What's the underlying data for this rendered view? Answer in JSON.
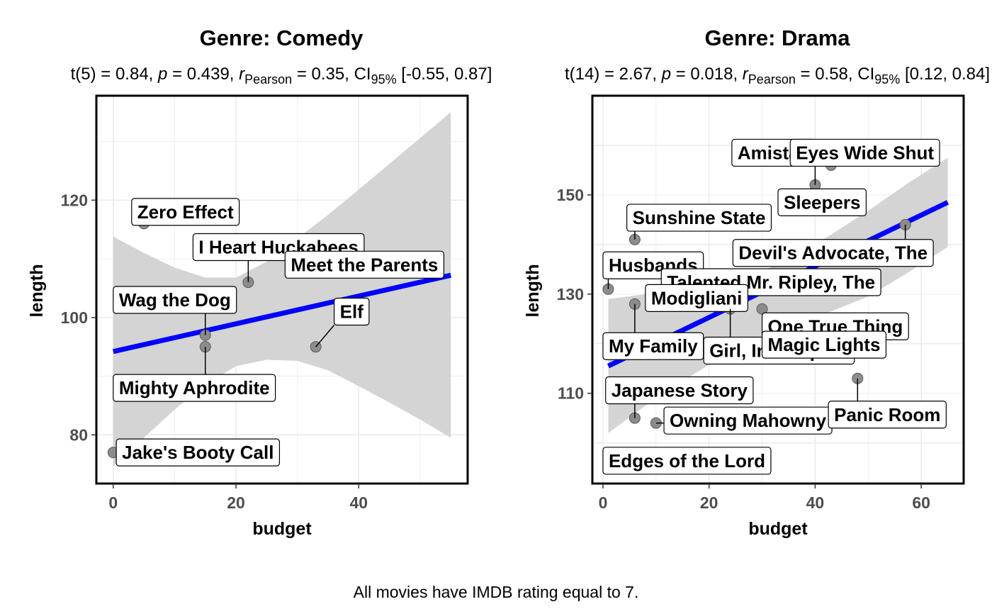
{
  "caption": "All movies have IMDB rating equal to 7.",
  "chart_data": [
    {
      "type": "scatter",
      "title": "Genre: Comedy",
      "subtitle": {
        "pre": "t(5) = 0.84, ",
        "p_sym": "p",
        "p_val": " = 0.439, ",
        "r_sym": "r",
        "r_sub": "Pearson",
        "r_val": " = 0.35, CI",
        "ci_sub": "95%",
        "ci_val": " [-0.55, 0.87]"
      },
      "xlabel": "budget",
      "ylabel": "length",
      "xlim": [
        -2.75,
        57.75
      ],
      "ylim": [
        71.7,
        137.8
      ],
      "xticks": [
        0,
        20,
        40
      ],
      "yticks": [
        80,
        100,
        120
      ],
      "grid": true,
      "points": [
        {
          "x": 5,
          "y": 116,
          "label": "Zero Effect",
          "lx": 3,
          "ly": 118
        },
        {
          "x": 22,
          "y": 106,
          "label": "I Heart Huckabees",
          "lx": 13,
          "ly": 112
        },
        {
          "x": 30,
          "y": 108,
          "label": "Meet the Parents",
          "lx": 28,
          "ly": 109
        },
        {
          "x": 15,
          "y": 97,
          "label": "Wag the Dog",
          "lx": 0,
          "ly": 103
        },
        {
          "x": 33,
          "y": 95,
          "label": "Elf",
          "lx": 36,
          "ly": 101
        },
        {
          "x": 15,
          "y": 95,
          "label": "Mighty Aphrodite",
          "lx": 0,
          "ly": 88
        },
        {
          "x": 0,
          "y": 77,
          "label": "Jake's Booty Call",
          "lx": 0.5,
          "ly": 77
        }
      ],
      "fit": {
        "x0": 0,
        "y0": 94.2,
        "x1": 55,
        "y1": 107.2
      },
      "band": {
        "x": [
          0,
          5,
          10,
          15,
          20,
          25,
          30,
          35,
          40,
          45,
          50,
          55
        ],
        "upper": [
          113.8,
          111.0,
          108.5,
          106.8,
          106.8,
          109.5,
          113.5,
          117.5,
          121.8,
          126.2,
          130.6,
          135.0
        ],
        "lower": [
          74.6,
          79.5,
          84.3,
          88.6,
          91.7,
          92.8,
          92.6,
          91.0,
          88.3,
          85.5,
          82.6,
          79.5
        ]
      }
    },
    {
      "type": "scatter",
      "title": "Genre: Drama",
      "subtitle": {
        "pre": "t(14) = 2.67, ",
        "p_sym": "p",
        "p_val": " = 0.018, ",
        "r_sym": "r",
        "r_sub": "Pearson",
        "r_val": " = 0.58, CI",
        "ci_sub": "95%",
        "ci_val": " [0.12, 0.84]"
      },
      "xlabel": "budget",
      "ylabel": "length",
      "xlim": [
        -2.0,
        68.0
      ],
      "ylim": [
        91.8,
        170.0
      ],
      "xticks": [
        0,
        20,
        40,
        60
      ],
      "yticks": [
        110,
        130,
        150
      ],
      "grid": true,
      "points": [
        {
          "x": 40,
          "y": 152,
          "label": "Amistad",
          "lx": 24.3,
          "ly": 158.5
        },
        {
          "x": 43,
          "y": 156,
          "label": "Eyes Wide Shut",
          "lx": 35.3,
          "ly": 158.5
        },
        {
          "x": 44,
          "y": 147,
          "label": "Sleepers",
          "lx": 33,
          "ly": 148.5
        },
        {
          "x": 6,
          "y": 141,
          "label": "Sunshine State",
          "lx": 4.5,
          "ly": 145.4
        },
        {
          "x": 57,
          "y": 144,
          "label": "Devil's Advocate, The",
          "lx": 24.5,
          "ly": 138.3
        },
        {
          "x": 1,
          "y": 131,
          "label": "Husbands",
          "lx": 0,
          "ly": 135.8
        },
        {
          "x": 28,
          "y": 134,
          "label": "Talented Mr. Ripley, The",
          "lx": 11,
          "ly": 132.4
        },
        {
          "x": 12,
          "y": 128,
          "label": "Modigliani",
          "lx": 8,
          "ly": 129.2
        },
        {
          "x": 24,
          "y": 127,
          "label": "Girl, Interrupted",
          "lx": 19,
          "ly": 118.6
        },
        {
          "x": 30,
          "y": 127,
          "label": "One True Thing",
          "lx": 30,
          "ly": 123.5
        },
        {
          "x": 30,
          "y": 117,
          "label": "Magic Lights",
          "lx": 30,
          "ly": 119.8
        },
        {
          "x": 6,
          "y": 128,
          "label": "My Family",
          "lx": 0,
          "ly": 119.5
        },
        {
          "x": 6,
          "y": 105,
          "label": "Japanese Story",
          "lx": 0.5,
          "ly": 110.6
        },
        {
          "x": 10,
          "y": 104,
          "label": "Owning Mahowny",
          "lx": 11.5,
          "ly": 104.5
        },
        {
          "x": 48,
          "y": 113,
          "label": "Panic Room",
          "lx": 42.5,
          "ly": 105.7
        },
        {
          "x": 1,
          "y": 97,
          "label": "Edges of the Lord",
          "lx": 0,
          "ly": 96.4
        }
      ],
      "fit": {
        "x0": 1,
        "y0": 115.5,
        "x1": 65,
        "y1": 148.5
      },
      "band": {
        "x": [
          1,
          8,
          15,
          22,
          29,
          36,
          43,
          50,
          57,
          65
        ],
        "upper": [
          129.0,
          130.0,
          131.0,
          132.5,
          134.2,
          137.5,
          142.0,
          146.8,
          152.0,
          157.5
        ],
        "lower": [
          102.0,
          107.5,
          112.5,
          117.0,
          121.0,
          124.0,
          126.5,
          129.5,
          134.0,
          139.5
        ]
      }
    }
  ]
}
